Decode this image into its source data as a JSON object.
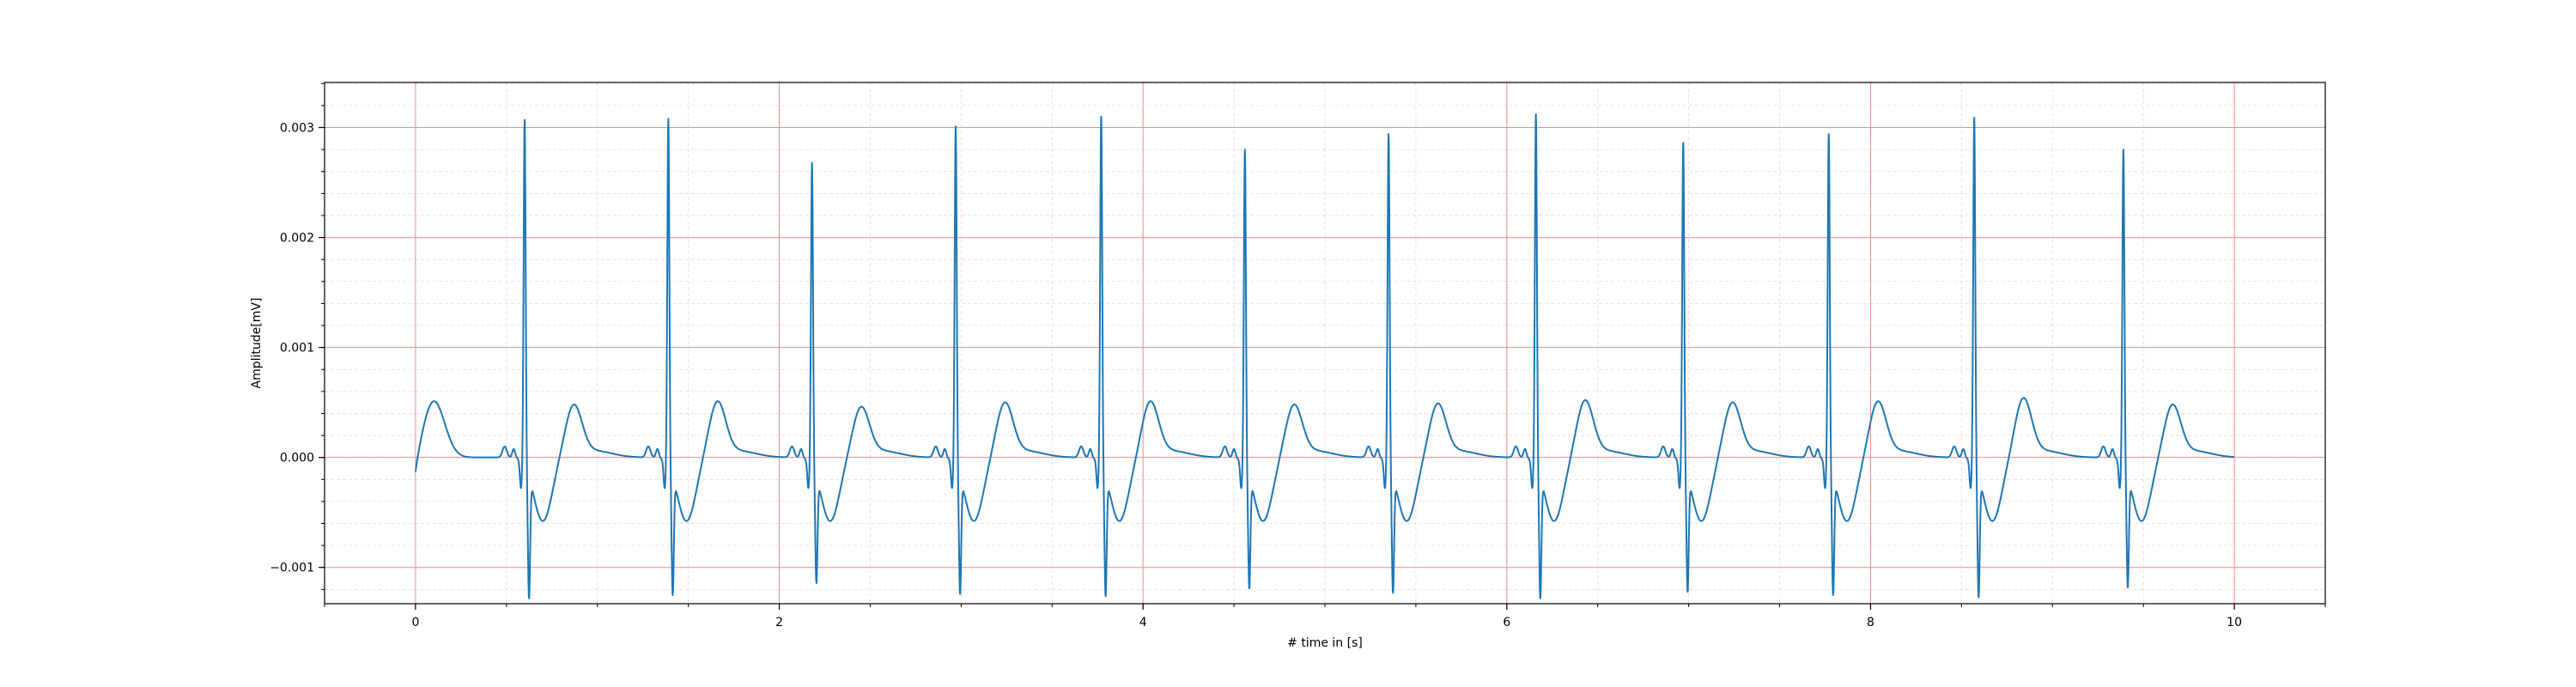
{
  "chart_data": {
    "type": "line",
    "title": "",
    "xlabel": "# time in [s]",
    "ylabel": "Amplitude[mV]",
    "xlim": [
      -0.5,
      10.5
    ],
    "ylim": [
      -0.00133,
      0.00341
    ],
    "xticks": [
      0,
      2,
      4,
      6,
      8,
      10
    ],
    "xtick_labels": [
      "0",
      "2",
      "4",
      "6",
      "8",
      "10"
    ],
    "yticks": [
      -0.001,
      0.0,
      0.001,
      0.002,
      0.003
    ],
    "ytick_labels": [
      "−0.001",
      "0.000",
      "0.001",
      "0.002",
      "0.003"
    ],
    "x_minor_step": 0.5,
    "y_minor_step": 0.0002,
    "grid": {
      "major": true,
      "minor": true,
      "major_color": "#f28b8b",
      "minor_color": "#f9cfe0"
    },
    "series": [
      {
        "color": "#1f77b4",
        "beat_r_peak_times": [
          0.6,
          1.39,
          2.18,
          2.97,
          3.77,
          4.56,
          5.35,
          6.16,
          6.97,
          7.77,
          8.57,
          9.39
        ],
        "beat_r_peak_values": [
          0.00315,
          0.00316,
          0.00276,
          0.00309,
          0.00318,
          0.00288,
          0.00302,
          0.0032,
          0.00294,
          0.00302,
          0.00317,
          0.00288
        ],
        "beat_s_trough_values": [
          -0.0011,
          -0.00107,
          -0.00096,
          -0.00106,
          -0.00108,
          -0.00101,
          -0.00105,
          -0.0011,
          -0.00104,
          -0.00107,
          -0.00109,
          -0.001
        ],
        "beat_t_wave_values": [
          0.00035,
          0.00038,
          0.00033,
          0.00037,
          0.00038,
          0.00035,
          0.00036,
          0.00039,
          0.00037,
          0.00038,
          0.00041,
          0.00035
        ],
        "start_point": [
          0.0,
          -0.00026
        ],
        "initial_wave_peak": [
          0.1,
          0.00052
        ],
        "end_point": [
          10.0,
          0.0
        ]
      }
    ]
  }
}
